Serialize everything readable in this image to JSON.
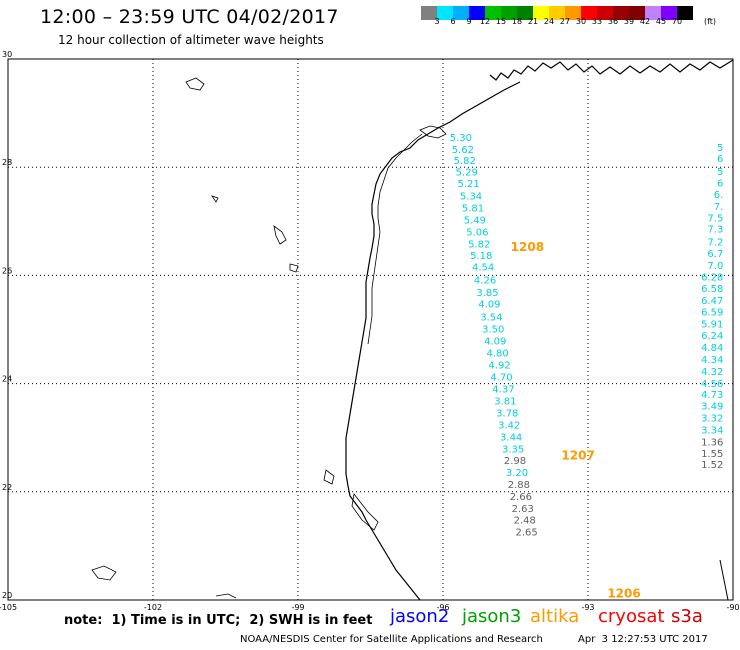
{
  "header": {
    "title": "12:00 – 23:59 UTC 04/02/2017",
    "subtitle": "12 hour collection of altimeter wave heights"
  },
  "colorbar": {
    "units": "(ft)",
    "swatches": [
      "#808080",
      "#00e5ff",
      "#00b0ff",
      "#0000ff",
      "#00c000",
      "#00a000",
      "#008000",
      "#ffff00",
      "#ffcc00",
      "#ff9900",
      "#ff0000",
      "#cc0000",
      "#990000",
      "#800000",
      "#c080ff",
      "#8000ff",
      "#000000"
    ],
    "ticks": [
      "3",
      "6",
      "9",
      "12",
      "15",
      "18",
      "21",
      "24",
      "27",
      "30",
      "33",
      "36",
      "39",
      "42",
      "45",
      "70"
    ]
  },
  "map": {
    "lon_range": [
      -105,
      -90
    ],
    "lat_range": [
      20,
      30
    ],
    "lat_labels": [
      "30",
      "28",
      "26",
      "24",
      "22",
      "20"
    ],
    "lon_labels": [
      "-105",
      "-102",
      "-99",
      "-96",
      "-93",
      "-90"
    ],
    "grid": "dotted"
  },
  "passes": [
    {
      "label": "1208",
      "lon": -94.6,
      "lat": 26.45,
      "color": "#ff9900"
    },
    {
      "label": "1207",
      "lon": -93.55,
      "lat": 22.6,
      "color": "#ff9900"
    },
    {
      "label": "1206",
      "lon": -92.6,
      "lat": 20.05,
      "color": "#ff9900"
    }
  ],
  "track_main": {
    "points": [
      {
        "lon": -95.86,
        "lat": 28.48,
        "v": "5.30",
        "color": "#00d0e0"
      },
      {
        "lon": -95.82,
        "lat": 28.26,
        "v": "5.62",
        "color": "#00d0e0"
      },
      {
        "lon": -95.78,
        "lat": 28.06,
        "v": "5.82",
        "color": "#00d0e0"
      },
      {
        "lon": -95.74,
        "lat": 27.85,
        "v": "5.29",
        "color": "#00d0e0"
      },
      {
        "lon": -95.7,
        "lat": 27.63,
        "v": "5.21",
        "color": "#00d0e0"
      },
      {
        "lon": -95.65,
        "lat": 27.4,
        "v": "5.34",
        "color": "#00d0e0"
      },
      {
        "lon": -95.61,
        "lat": 27.18,
        "v": "5.81",
        "color": "#00d0e0"
      },
      {
        "lon": -95.57,
        "lat": 26.96,
        "v": "5.49",
        "color": "#00d0e0"
      },
      {
        "lon": -95.52,
        "lat": 26.74,
        "v": "5.06",
        "color": "#00d0e0"
      },
      {
        "lon": -95.48,
        "lat": 26.52,
        "v": "5.82",
        "color": "#00d0e0"
      },
      {
        "lon": -95.44,
        "lat": 26.3,
        "v": "5.18",
        "color": "#00d0e0"
      },
      {
        "lon": -95.4,
        "lat": 26.09,
        "v": "4.54",
        "color": "#00d0e0"
      },
      {
        "lon": -95.36,
        "lat": 25.85,
        "v": "4.26",
        "color": "#00d0e0"
      },
      {
        "lon": -95.31,
        "lat": 25.62,
        "v": "3.85",
        "color": "#00d0e0"
      },
      {
        "lon": -95.27,
        "lat": 25.41,
        "v": "4.09",
        "color": "#00d0e0"
      },
      {
        "lon": -95.23,
        "lat": 25.17,
        "v": "3.54",
        "color": "#00d0e0"
      },
      {
        "lon": -95.19,
        "lat": 24.94,
        "v": "3.50",
        "color": "#00d0e0"
      },
      {
        "lon": -95.15,
        "lat": 24.72,
        "v": "4.09",
        "color": "#00d0e0"
      },
      {
        "lon": -95.1,
        "lat": 24.5,
        "v": "4.80",
        "color": "#00d0e0"
      },
      {
        "lon": -95.06,
        "lat": 24.28,
        "v": "4.92",
        "color": "#00d0e0"
      },
      {
        "lon": -95.02,
        "lat": 24.06,
        "v": "4.70",
        "color": "#00d0e0"
      },
      {
        "lon": -94.98,
        "lat": 23.84,
        "v": "4.37",
        "color": "#00d0e0"
      },
      {
        "lon": -94.94,
        "lat": 23.61,
        "v": "3.81",
        "color": "#00d0e0"
      },
      {
        "lon": -94.9,
        "lat": 23.39,
        "v": "3.78",
        "color": "#00d0e0"
      },
      {
        "lon": -94.86,
        "lat": 23.17,
        "v": "3.42",
        "color": "#00d0e0"
      },
      {
        "lon": -94.82,
        "lat": 22.95,
        "v": "3.44",
        "color": "#00d0e0"
      },
      {
        "lon": -94.78,
        "lat": 22.73,
        "v": "3.35",
        "color": "#00d0e0"
      },
      {
        "lon": -94.74,
        "lat": 22.51,
        "v": "2.98",
        "color": "#606060"
      },
      {
        "lon": -94.7,
        "lat": 22.29,
        "v": "3.20",
        "color": "#00d0e0"
      },
      {
        "lon": -94.66,
        "lat": 22.07,
        "v": "2.88",
        "color": "#606060"
      },
      {
        "lon": -94.62,
        "lat": 21.85,
        "v": "2.66",
        "color": "#606060"
      },
      {
        "lon": -94.58,
        "lat": 21.63,
        "v": "2.63",
        "color": "#606060"
      },
      {
        "lon": -94.54,
        "lat": 21.41,
        "v": "2.48",
        "color": "#606060"
      },
      {
        "lon": -94.5,
        "lat": 21.19,
        "v": "2.65",
        "color": "#606060"
      }
    ]
  },
  "track_right": {
    "points": [
      {
        "lon": -90.2,
        "lat": 28.3,
        "v": "5",
        "color": "#00d0e0"
      },
      {
        "lon": -90.2,
        "lat": 28.1,
        "v": "6",
        "color": "#00d0e0"
      },
      {
        "lon": -90.2,
        "lat": 27.86,
        "v": "5",
        "color": "#00d0e0"
      },
      {
        "lon": -90.2,
        "lat": 27.64,
        "v": "6",
        "color": "#00d0e0"
      },
      {
        "lon": -90.2,
        "lat": 27.43,
        "v": "6.",
        "color": "#00d0e0"
      },
      {
        "lon": -90.2,
        "lat": 27.21,
        "v": "7.",
        "color": "#00d0e0"
      },
      {
        "lon": -90.2,
        "lat": 27.0,
        "v": "7.5",
        "color": "#00d0e0"
      },
      {
        "lon": -90.2,
        "lat": 26.79,
        "v": "7.3",
        "color": "#00d0e0"
      },
      {
        "lon": -90.2,
        "lat": 26.55,
        "v": "7.2",
        "color": "#00d0e0"
      },
      {
        "lon": -90.2,
        "lat": 26.34,
        "v": "6.7",
        "color": "#00d0e0"
      },
      {
        "lon": -90.2,
        "lat": 26.12,
        "v": "7.0",
        "color": "#00d0e0"
      },
      {
        "lon": -90.2,
        "lat": 25.91,
        "v": "6.28",
        "color": "#00d0e0"
      },
      {
        "lon": -90.2,
        "lat": 25.69,
        "v": "6.58",
        "color": "#00d0e0"
      },
      {
        "lon": -90.2,
        "lat": 25.47,
        "v": "6.47",
        "color": "#00d0e0"
      },
      {
        "lon": -90.2,
        "lat": 25.26,
        "v": "6.59",
        "color": "#00d0e0"
      },
      {
        "lon": -90.2,
        "lat": 25.04,
        "v": "5.91",
        "color": "#00d0e0"
      },
      {
        "lon": -90.2,
        "lat": 24.82,
        "v": "6.24",
        "color": "#00d0e0"
      },
      {
        "lon": -90.2,
        "lat": 24.6,
        "v": "4.84",
        "color": "#00d0e0"
      },
      {
        "lon": -90.2,
        "lat": 24.38,
        "v": "4.34",
        "color": "#00d0e0"
      },
      {
        "lon": -90.2,
        "lat": 24.16,
        "v": "4.32",
        "color": "#00d0e0"
      },
      {
        "lon": -90.2,
        "lat": 23.94,
        "v": "4.56",
        "color": "#00d0e0"
      },
      {
        "lon": -90.2,
        "lat": 23.73,
        "v": "4.73",
        "color": "#00d0e0"
      },
      {
        "lon": -90.2,
        "lat": 23.52,
        "v": "3.49",
        "color": "#00d0e0"
      },
      {
        "lon": -90.2,
        "lat": 23.3,
        "v": "3.32",
        "color": "#00d0e0"
      },
      {
        "lon": -90.2,
        "lat": 23.08,
        "v": "3.34",
        "color": "#00d0e0"
      },
      {
        "lon": -90.2,
        "lat": 22.86,
        "v": "1.36",
        "color": "#606060"
      },
      {
        "lon": -90.2,
        "lat": 22.64,
        "v": "1.55",
        "color": "#606060"
      },
      {
        "lon": -90.2,
        "lat": 22.44,
        "v": "1.52",
        "color": "#606060"
      }
    ]
  },
  "note": "note:  1) Time is in UTC;  2) SWH is in feet",
  "legend": [
    {
      "label": "jason2",
      "color": "#0000ff"
    },
    {
      "label": "jason3",
      "color": "#00a000"
    },
    {
      "label": "altika",
      "color": "#ff9900"
    },
    {
      "label": "cryosat",
      "color": "#ff0000"
    },
    {
      "label": "s3a",
      "color": "#cc0000"
    }
  ],
  "credit": "NOAA/NESDIS Center for Satellite Applications and Research",
  "credit_date": "Apr  3 12:27:53 UTC 2017"
}
